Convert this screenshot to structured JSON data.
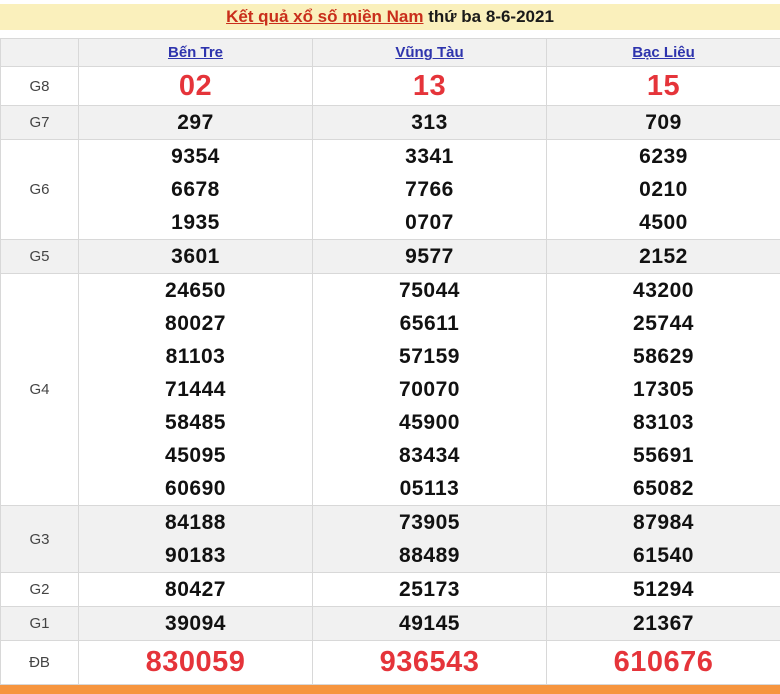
{
  "title": {
    "link": "Kết quả xổ số miền Nam",
    "suffix": " thứ ba 8-6-2021"
  },
  "table": {
    "corner": "",
    "columns": [
      "Bến Tre",
      "Vũng Tàu",
      "Bạc Liêu"
    ],
    "rows": [
      {
        "id": "g8",
        "label": "G8",
        "highlight": true,
        "values": [
          [
            "02"
          ],
          [
            "13"
          ],
          [
            "15"
          ]
        ]
      },
      {
        "id": "g7",
        "label": "G7",
        "highlight": false,
        "values": [
          [
            "297"
          ],
          [
            "313"
          ],
          [
            "709"
          ]
        ]
      },
      {
        "id": "g6",
        "label": "G6",
        "highlight": false,
        "values": [
          [
            "9354",
            "6678",
            "1935"
          ],
          [
            "3341",
            "7766",
            "0707"
          ],
          [
            "6239",
            "0210",
            "4500"
          ]
        ]
      },
      {
        "id": "g5",
        "label": "G5",
        "highlight": false,
        "values": [
          [
            "3601"
          ],
          [
            "9577"
          ],
          [
            "2152"
          ]
        ]
      },
      {
        "id": "g4",
        "label": "G4",
        "highlight": false,
        "values": [
          [
            "24650",
            "80027",
            "81103",
            "71444",
            "58485",
            "45095",
            "60690"
          ],
          [
            "75044",
            "65611",
            "57159",
            "70070",
            "45900",
            "83434",
            "05113"
          ],
          [
            "43200",
            "25744",
            "58629",
            "17305",
            "83103",
            "55691",
            "65082"
          ]
        ]
      },
      {
        "id": "g3",
        "label": "G3",
        "highlight": false,
        "values": [
          [
            "84188",
            "90183"
          ],
          [
            "73905",
            "88489"
          ],
          [
            "87984",
            "61540"
          ]
        ]
      },
      {
        "id": "g2",
        "label": "G2",
        "highlight": false,
        "values": [
          [
            "80427"
          ],
          [
            "25173"
          ],
          [
            "51294"
          ]
        ]
      },
      {
        "id": "g1",
        "label": "G1",
        "highlight": false,
        "values": [
          [
            "39094"
          ],
          [
            "49145"
          ],
          [
            "21367"
          ]
        ]
      },
      {
        "id": "db",
        "label": "ĐB",
        "highlight": true,
        "values": [
          [
            "830059"
          ],
          [
            "936543"
          ],
          [
            "610676"
          ]
        ]
      }
    ]
  },
  "colors": {
    "banner_bg": "#FAF0BC",
    "title_red": "#C92E1B",
    "link_blue": "#2E34AD",
    "prize_red": "#E5343A",
    "stripe_gray": "#F1F1F1",
    "border_gray": "#D8D8D8",
    "footer_orange": "#F6953F"
  }
}
